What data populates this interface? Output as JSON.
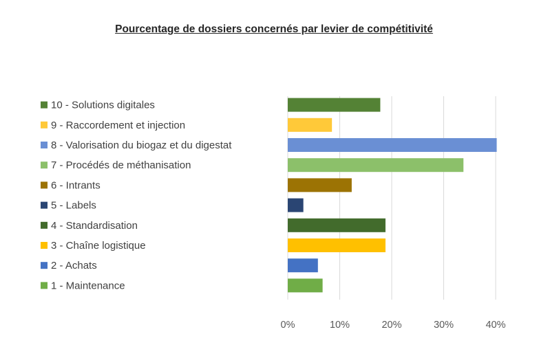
{
  "chart_data": {
    "type": "bar",
    "orientation": "horizontal",
    "title": "Pourcentage de dossiers concernés par levier de compétitivité",
    "categories": [
      "10 - Solutions digitales",
      "9 - Raccordement et injection",
      "8 - Valorisation du biogaz  et du digestat",
      "7 - Procédés de méthanisation",
      "6 - Intrants",
      "5 - Labels",
      "4 - Standardisation",
      "3 - Chaîne logistique",
      "2 - Achats",
      "1 - Maintenance"
    ],
    "values": [
      17.8,
      8.5,
      40.2,
      33.8,
      12.3,
      3.0,
      18.8,
      18.8,
      5.8,
      6.7
    ],
    "colors": [
      "#548235",
      "#FFC939",
      "#6A8FD4",
      "#8CC06A",
      "#9C7304",
      "#2A4573",
      "#426B2C",
      "#FFC000",
      "#4472C4",
      "#70AD47"
    ],
    "xlim": [
      0,
      40
    ],
    "xticks": [
      "0%",
      "10%",
      "20%",
      "30%",
      "40%"
    ],
    "legend": "left",
    "grid": true
  }
}
